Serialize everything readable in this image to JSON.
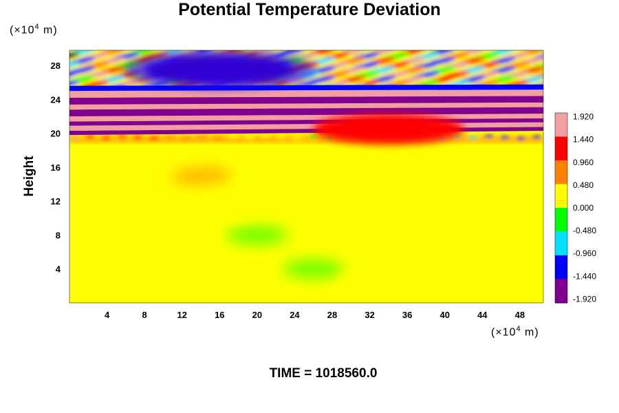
{
  "chart_data": {
    "type": "heatmap",
    "title": "Potential Temperature Deviation",
    "ylabel": "Height",
    "y_unit_base": "(×10",
    "y_unit_exp": "4",
    "y_unit_tail": " m)",
    "x_unit_base": "(×10",
    "x_unit_exp": "4",
    "x_unit_tail": " m)",
    "footer": "TIME = 1018560.0",
    "xlim": [
      0,
      50.5
    ],
    "ylim": [
      0,
      29.8
    ],
    "x_ticks": [
      4,
      8,
      12,
      16,
      20,
      24,
      28,
      32,
      36,
      40,
      44,
      48
    ],
    "y_ticks": [
      4,
      8,
      12,
      16,
      20,
      24,
      28
    ],
    "colorbar": {
      "min": -2.0,
      "max": 2.0,
      "tick_values": [
        1.92,
        1.44,
        0.96,
        0.48,
        0.0,
        -0.48,
        -0.96,
        -1.44,
        -1.92
      ],
      "tick_labels": [
        "1.920",
        "1.440",
        "0.960",
        "0.480",
        "0.000",
        "-0.480",
        "-0.960",
        "-1.440",
        "-1.920"
      ],
      "colors": [
        "#800090",
        "#0000ff",
        "#00e0ff",
        "#00ff00",
        "#ffff00",
        "#ff8000",
        "#ff0000",
        "#f0a0a0"
      ]
    },
    "bands": [
      {
        "y_from": 19.8,
        "y_to": 20.3,
        "value": -1.9
      },
      {
        "y_from": 20.3,
        "y_to": 20.9,
        "value": 1.95
      },
      {
        "y_from": 20.9,
        "y_to": 21.4,
        "value": -1.9
      },
      {
        "y_from": 21.4,
        "y_to": 22.0,
        "value": 1.95
      },
      {
        "y_from": 22.0,
        "y_to": 22.8,
        "value": -1.9
      },
      {
        "y_from": 22.8,
        "y_to": 23.4,
        "value": 1.95
      },
      {
        "y_from": 23.4,
        "y_to": 24.2,
        "value": -1.9
      },
      {
        "y_from": 24.2,
        "y_to": 25.0,
        "value": 1.95
      },
      {
        "y_from": 25.0,
        "y_to": 25.6,
        "value": -1.2
      }
    ],
    "features": [
      {
        "x": 16,
        "y": 27.5,
        "value": -1.9,
        "note": "upper-left cold blob"
      },
      {
        "x": 34,
        "y": 20.5,
        "value": 1.2,
        "note": "turbulent patch"
      }
    ]
  }
}
